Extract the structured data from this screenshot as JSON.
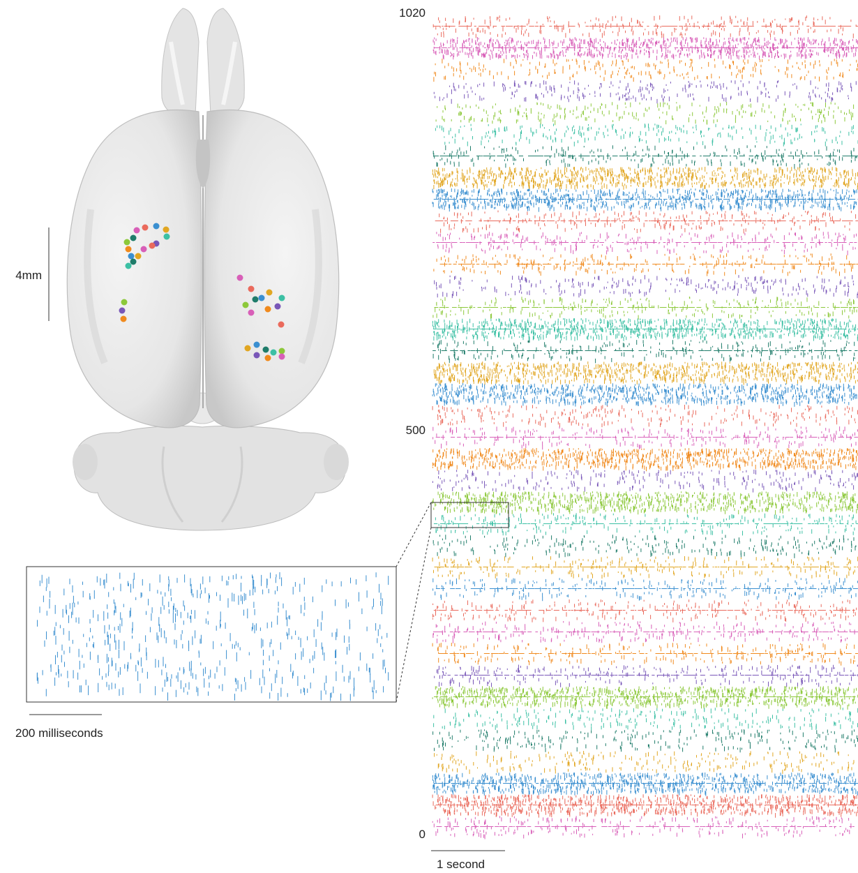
{
  "raster": {
    "y_ticks": [
      "1020",
      "500",
      "0"
    ],
    "time_scale_label": "1 second",
    "band_colors": [
      "#d85fb8",
      "#ea6a5c",
      "#3a8fd0",
      "#e1a622",
      "#1f7c6a",
      "#3cc0a4",
      "#8cc83a",
      "#7957b8",
      "#f08a1e"
    ]
  },
  "brain": {
    "scale_label": "4mm",
    "probe_colors": [
      "#d85fb8",
      "#ea6a5c",
      "#3a8fd0",
      "#e1a622",
      "#1f7c6a",
      "#3cc0a4",
      "#8cc83a",
      "#7957b8",
      "#f08a1e"
    ]
  },
  "inset": {
    "scale_label": "200 milliseconds",
    "color": "#3a8fd0"
  }
}
